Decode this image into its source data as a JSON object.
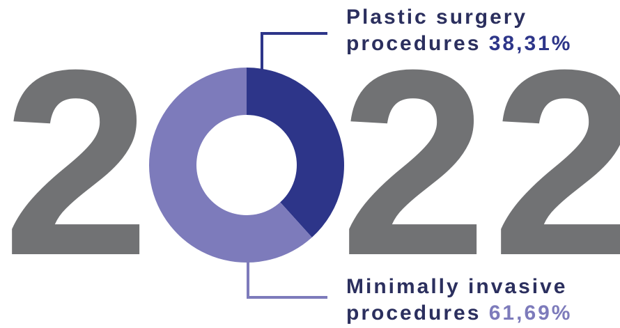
{
  "year_digits": [
    "2",
    "2",
    "2"
  ],
  "colors": {
    "digits": "#717274",
    "plastic": "#2d3589",
    "minimal": "#7d7bbb",
    "label_text": "#2b2f5e"
  },
  "labels": {
    "plastic_line1": "Plastic surgery",
    "plastic_line2": "procedures",
    "plastic_value": "38,31%",
    "minimal_line1": "Minimally invasive",
    "minimal_line2": "procedures",
    "minimal_value": "61,69%"
  },
  "chart_data": {
    "type": "pie",
    "title": "",
    "slices": [
      {
        "label": "Plastic surgery procedures",
        "value": 38.31,
        "color": "#2d3589"
      },
      {
        "label": "Minimally invasive procedures",
        "value": 61.69,
        "color": "#7d7bbb"
      }
    ],
    "donut": true,
    "start_angle": "12 o'clock",
    "direction": "clockwise"
  }
}
